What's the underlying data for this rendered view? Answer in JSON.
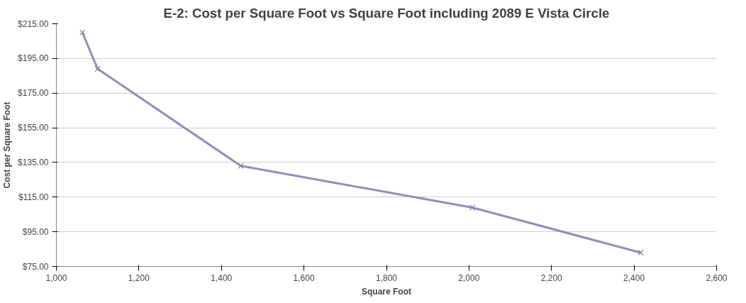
{
  "chart_data": {
    "type": "line",
    "title": "E-2: Cost per Square Foot vs Square Foot including 2089 E Vista Circle",
    "xlabel": "Square Foot",
    "ylabel": "Cost per Square Foot",
    "x": [
      1063,
      1100,
      1447,
      2008,
      2416
    ],
    "series": [
      {
        "color": "#8e8fb8",
        "values": [
          210,
          189,
          133,
          109,
          83
        ]
      }
    ],
    "xlim": [
      1000,
      2600
    ],
    "xticks": [
      {
        "value": 1000,
        "label": "1,000"
      },
      {
        "value": 1200,
        "label": "1,200"
      },
      {
        "value": 1400,
        "label": "1,400"
      },
      {
        "value": 1600,
        "label": "1,600"
      },
      {
        "value": 1800,
        "label": "1,800"
      },
      {
        "value": 2000,
        "label": "2,000"
      },
      {
        "value": 2200,
        "label": "2,200"
      },
      {
        "value": 2400,
        "label": "2,400"
      },
      {
        "value": 2600,
        "label": "2,600"
      }
    ],
    "ylim": [
      75,
      215
    ],
    "yticks": [
      {
        "value": 75,
        "label": "$75.00"
      },
      {
        "value": 95,
        "label": "$95.00"
      },
      {
        "value": 115,
        "label": "$115.00"
      },
      {
        "value": 135,
        "label": "$135.00"
      },
      {
        "value": 155,
        "label": "$155.00"
      },
      {
        "value": 175,
        "label": "$175.00"
      },
      {
        "value": 195,
        "label": "$195.00"
      },
      {
        "value": 215,
        "label": "$215.00"
      }
    ],
    "grid": "y",
    "marker": "cross",
    "line_style": "solid"
  }
}
